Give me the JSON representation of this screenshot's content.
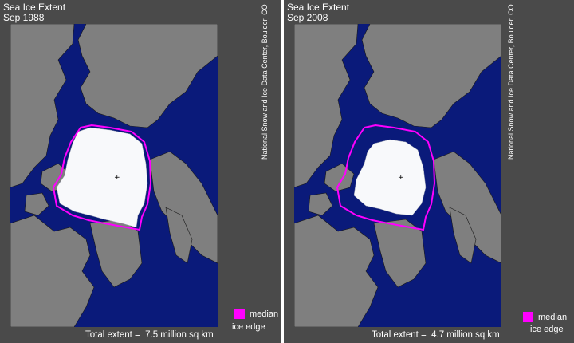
{
  "colors": {
    "ocean": "#0a1a7a",
    "land": "#7f7f7f",
    "ice": "#f8f9fb",
    "median_edge": "#ff00ff",
    "background": "#4a4a4a"
  },
  "credit": "National Snow and Ice Data Center, Boulder, CO",
  "legend": {
    "line1": "median",
    "line2": "ice edge"
  },
  "panels": [
    {
      "title_line1": "Sea Ice Extent",
      "title_line2": "Sep 1988",
      "total_label": "Total extent =",
      "total_value": "7.5 million sq km"
    },
    {
      "title_line1": "Sea Ice Extent",
      "title_line2": "Sep 2008",
      "total_label": "Total extent =",
      "total_value": "4.7 million sq km"
    }
  ]
}
